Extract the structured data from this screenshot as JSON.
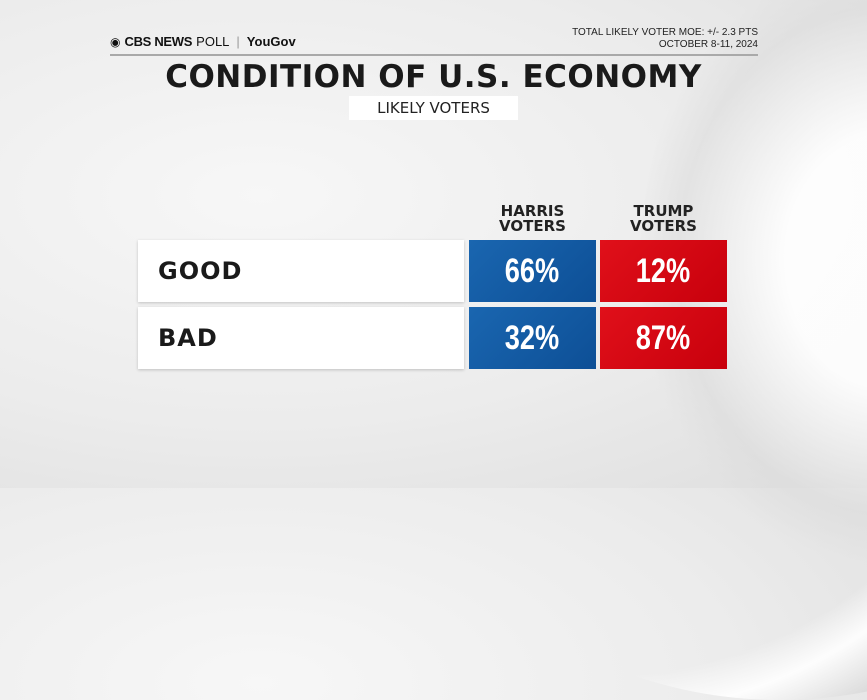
{
  "header": {
    "brand": "CBS NEWS",
    "poll_label": "POLL",
    "partner": "YouGov",
    "moe": "TOTAL LIKELY VOTER MOE: +/- 2.3 PTS",
    "dates": "OCTOBER 8-11, 2024"
  },
  "title": "CONDITION OF U.S. ECONOMY",
  "subtitle": "LIKELY VOTERS",
  "columns": {
    "harris": "HARRIS VOTERS",
    "trump": "TRUMP VOTERS"
  },
  "rows": [
    {
      "label": "GOOD",
      "harris": "66%",
      "trump": "12%"
    },
    {
      "label": "BAD",
      "harris": "32%",
      "trump": "87%"
    }
  ],
  "colors": {
    "harris": "#0f57a0",
    "trump": "#d4000f"
  },
  "chart_data": {
    "type": "table",
    "title": "CONDITION OF U.S. ECONOMY",
    "subtitle": "LIKELY VOTERS",
    "categories": [
      "GOOD",
      "BAD"
    ],
    "series": [
      {
        "name": "HARRIS VOTERS",
        "values": [
          66,
          32
        ]
      },
      {
        "name": "TRUMP VOTERS",
        "values": [
          12,
          87
        ]
      }
    ],
    "unit": "%",
    "note": "TOTAL LIKELY VOTER MOE: +/- 2.3 PTS; OCTOBER 8-11, 2024"
  }
}
